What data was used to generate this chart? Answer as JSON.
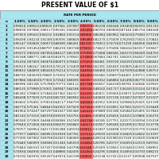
{
  "title": "PRESENT VALUE OF $1",
  "subtitle": "RATE PER PERIOD",
  "col_header": [
    "n",
    "1.00%",
    "1.50%",
    "2.00%",
    "2.50%",
    "3.00%",
    "4.00%",
    "5.00%",
    "6.00%",
    "7.00%",
    "8.00%",
    "9.00%"
  ],
  "rows": [
    [
      1,
      0.9901,
      0.98522,
      0.98039,
      0.97561,
      0.97087,
      0.96154,
      0.95238,
      0.9434,
      0.93458,
      0.92593,
      0.91743
    ],
    [
      2,
      0.9803,
      0.97066,
      0.96117,
      0.95181,
      0.9426,
      0.92456,
      0.90703,
      0.89,
      0.87344,
      0.85734,
      0.84168
    ],
    [
      3,
      0.97059,
      0.95632,
      0.94232,
      0.9286,
      0.91514,
      0.889,
      0.86384,
      0.83962,
      0.8163,
      0.79383,
      0.77218
    ],
    [
      4,
      0.96098,
      0.94218,
      0.92385,
      0.90595,
      0.88849,
      0.8548,
      0.8227,
      0.79209,
      0.7629,
      0.73503,
      0.70843
    ],
    [
      5,
      0.95147,
      0.92826,
      0.90573,
      0.88385,
      0.86261,
      0.82193,
      0.78353,
      0.74726,
      0.71299,
      0.68058,
      0.64993
    ],
    [
      6,
      0.94205,
      0.91454,
      0.88797,
      0.8623,
      0.83748,
      0.79031,
      0.74622,
      0.70496,
      0.66634,
      0.63017,
      0.59627
    ],
    [
      7,
      0.93272,
      0.90103,
      0.87056,
      0.84127,
      0.81309,
      0.75992,
      0.71068,
      0.66506,
      0.62275,
      0.58349,
      0.54703
    ],
    [
      8,
      0.92348,
      0.88771,
      0.85349,
      0.82075,
      0.78941,
      0.73069,
      0.67684,
      0.62741,
      0.58201,
      0.54027,
      0.50187
    ],
    [
      9,
      0.91434,
      0.87459,
      0.83676,
      0.80073,
      0.76642,
      0.70259,
      0.64461,
      0.5919,
      0.54393,
      0.50025,
      0.46043
    ],
    [
      10,
      0.90529,
      0.86167,
      0.82035,
      0.7812,
      0.74409,
      0.67556,
      0.61391,
      0.55839,
      0.50835,
      0.46319,
      0.42241
    ],
    [
      11,
      0.89632,
      0.84893,
      0.80426,
      0.76214,
      0.72242,
      0.64958,
      0.58468,
      0.52679,
      0.47509,
      0.42888,
      0.38753
    ],
    [
      12,
      0.88745,
      0.83639,
      0.78849,
      0.74356,
      0.70138,
      0.6246,
      0.55684,
      0.49697,
      0.44401,
      0.39711,
      0.35553
    ],
    [
      13,
      0.87866,
      0.82403,
      0.77303,
      0.72542,
      0.68095,
      0.60057,
      0.53032,
      0.46884,
      0.41496,
      0.3677,
      0.32618
    ],
    [
      14,
      0.86996,
      0.81185,
      0.75788,
      0.70773,
      0.66112,
      0.57748,
      0.50507,
      0.4423,
      0.38782,
      0.34046,
      0.29925
    ],
    [
      15,
      0.86135,
      0.79985,
      0.74301,
      0.69047,
      0.64186,
      0.55526,
      0.48102,
      0.41727,
      0.36245,
      0.31524,
      0.27454
    ],
    [
      16,
      0.85282,
      0.78803,
      0.72845,
      0.67362,
      0.62317,
      0.53391,
      0.45811,
      0.39365,
      0.33873,
      0.29189,
      0.25187
    ],
    [
      17,
      0.84438,
      0.77639,
      0.71416,
      0.6572,
      0.60502,
      0.51337,
      0.4363,
      0.37136,
      0.31657,
      0.27027,
      0.23107
    ],
    [
      18,
      0.83602,
      0.76491,
      0.70016,
      0.64117,
      0.58739,
      0.49363,
      0.41552,
      0.35034,
      0.29586,
      0.25025,
      0.21199
    ],
    [
      19,
      0.82774,
      0.75361,
      0.68643,
      0.62553,
      0.57029,
      0.47464,
      0.39573,
      0.33051,
      0.27651,
      0.23171,
      0.19449
    ],
    [
      20,
      0.81954,
      0.74247,
      0.67297,
      0.61027,
      0.55368,
      0.45639,
      0.37689,
      0.3118,
      0.25842,
      0.21455,
      0.17843
    ],
    [
      21,
      0.81143,
      0.7315,
      0.65978,
      0.59539,
      0.53755,
      0.43883,
      0.35894,
      0.29416,
      0.24151,
      0.19866,
      0.1637
    ],
    [
      22,
      0.8034,
      0.72069,
      0.64684,
      0.58086,
      0.52189,
      0.42196,
      0.34185,
      0.27751,
      0.22571,
      0.18394,
      0.15018
    ],
    [
      23,
      0.79544,
      0.71004,
      0.63416,
      0.5667,
      0.50669,
      0.40573,
      0.32557,
      0.2618,
      0.21095,
      0.17032,
      0.13778
    ],
    [
      24,
      0.78757,
      0.69954,
      0.62172,
      0.55288,
      0.49193,
      0.39012,
      0.31007,
      0.24698,
      0.19715,
      0.1577,
      0.1264
    ],
    [
      25,
      0.77977,
      0.68921,
      0.60953,
      0.53939,
      0.47761,
      0.37512,
      0.2953,
      0.233,
      0.18425,
      0.14602,
      0.11597
    ],
    [
      26,
      0.77205,
      0.67902,
      0.59758,
      0.52623,
      0.46369,
      0.36069,
      0.28124,
      0.21981,
      0.1722,
      0.1352,
      0.10639
    ],
    [
      27,
      0.7644,
      0.66899,
      0.58586,
      0.5134,
      0.45019,
      0.34682,
      0.26785,
      0.20737,
      0.16093,
      0.12519,
      0.09761
    ],
    [
      28,
      0.75684,
      0.6591,
      0.57437,
      0.50088,
      0.43708,
      0.33348,
      0.25509,
      0.19563,
      0.1504,
      0.11591,
      0.08955
    ],
    [
      29,
      0.74934,
      0.64936,
      0.56311,
      0.48866,
      0.42435,
      0.32065,
      0.24295,
      0.18456,
      0.14056,
      0.10733,
      0.08215
    ],
    [
      30,
      0.74192,
      0.63976,
      0.55207,
      0.47674,
      0.41199,
      0.30832,
      0.23138,
      0.17411,
      0.13137,
      0.09938,
      0.07537
    ]
  ],
  "highlight_col": 6,
  "header_bg": "#a8e6f0",
  "subheader_bg": "#a8e6f0",
  "row_bg_even": "#ffffff",
  "row_bg_odd": "#e8f5e9",
  "highlight_bg": "#ff6666",
  "grid_color": "#bbbbbb",
  "title_fontsize": 5.5,
  "cell_fontsize": 2.8,
  "header_fontsize": 3.0
}
